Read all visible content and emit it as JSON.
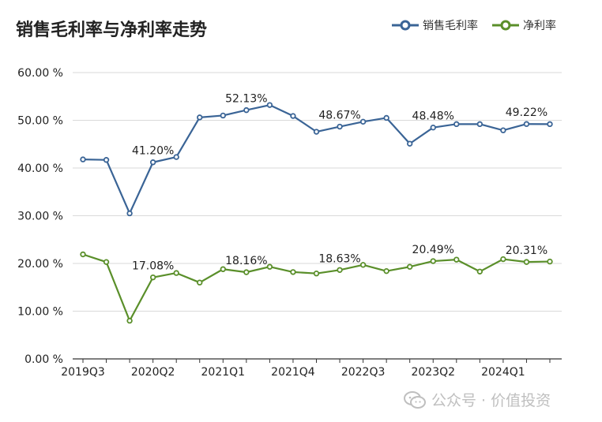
{
  "chart_data": {
    "type": "line",
    "title": "销售毛利率与净利率走势",
    "categories": [
      "2019Q3",
      "2019Q4",
      "2020Q1",
      "2020Q2",
      "2020Q3",
      "2020Q4",
      "2021Q1",
      "2021Q2",
      "2021Q3",
      "2021Q4",
      "2022Q1",
      "2022Q2",
      "2022Q3",
      "2022Q4",
      "2023Q1",
      "2023Q2",
      "2023Q3",
      "2023Q4",
      "2024Q1",
      "2024Q2",
      "2024Q3"
    ],
    "x_tick_labels": [
      "2019Q3",
      "2020Q2",
      "2021Q1",
      "2021Q4",
      "2022Q3",
      "2023Q2",
      "2024Q1"
    ],
    "y_ticks": [
      "0.00 %",
      "10.00 %",
      "20.00 %",
      "30.00 %",
      "40.00 %",
      "50.00 %",
      "60.00 %"
    ],
    "ylim": [
      0,
      60
    ],
    "grid": true,
    "legend_position": "top-right",
    "series": [
      {
        "name": "销售毛利率",
        "color": "#3a6496",
        "values": [
          41.8,
          41.7,
          30.5,
          41.2,
          42.3,
          50.6,
          51.0,
          52.13,
          53.2,
          50.9,
          47.6,
          48.67,
          49.7,
          50.5,
          45.1,
          48.48,
          49.2,
          49.2,
          47.9,
          49.22,
          49.2
        ],
        "labels": [
          {
            "index": 3,
            "text": "41.20%"
          },
          {
            "index": 7,
            "text": "52.13%"
          },
          {
            "index": 11,
            "text": "48.67%"
          },
          {
            "index": 15,
            "text": "48.48%"
          },
          {
            "index": 19,
            "text": "49.22%"
          }
        ]
      },
      {
        "name": "净利率",
        "color": "#5a8f2a",
        "values": [
          21.9,
          20.3,
          8.0,
          17.08,
          18.0,
          16.0,
          18.8,
          18.16,
          19.3,
          18.2,
          17.9,
          18.63,
          19.7,
          18.4,
          19.3,
          20.49,
          20.8,
          18.3,
          20.9,
          20.31,
          20.4
        ],
        "labels": [
          {
            "index": 3,
            "text": "17.08%"
          },
          {
            "index": 7,
            "text": "18.16%"
          },
          {
            "index": 11,
            "text": "18.63%"
          },
          {
            "index": 15,
            "text": "20.49%"
          },
          {
            "index": 19,
            "text": "20.31%"
          }
        ]
      }
    ]
  },
  "watermark": {
    "icon": "wechat-icon",
    "text": "公众号 · 价值投资"
  }
}
